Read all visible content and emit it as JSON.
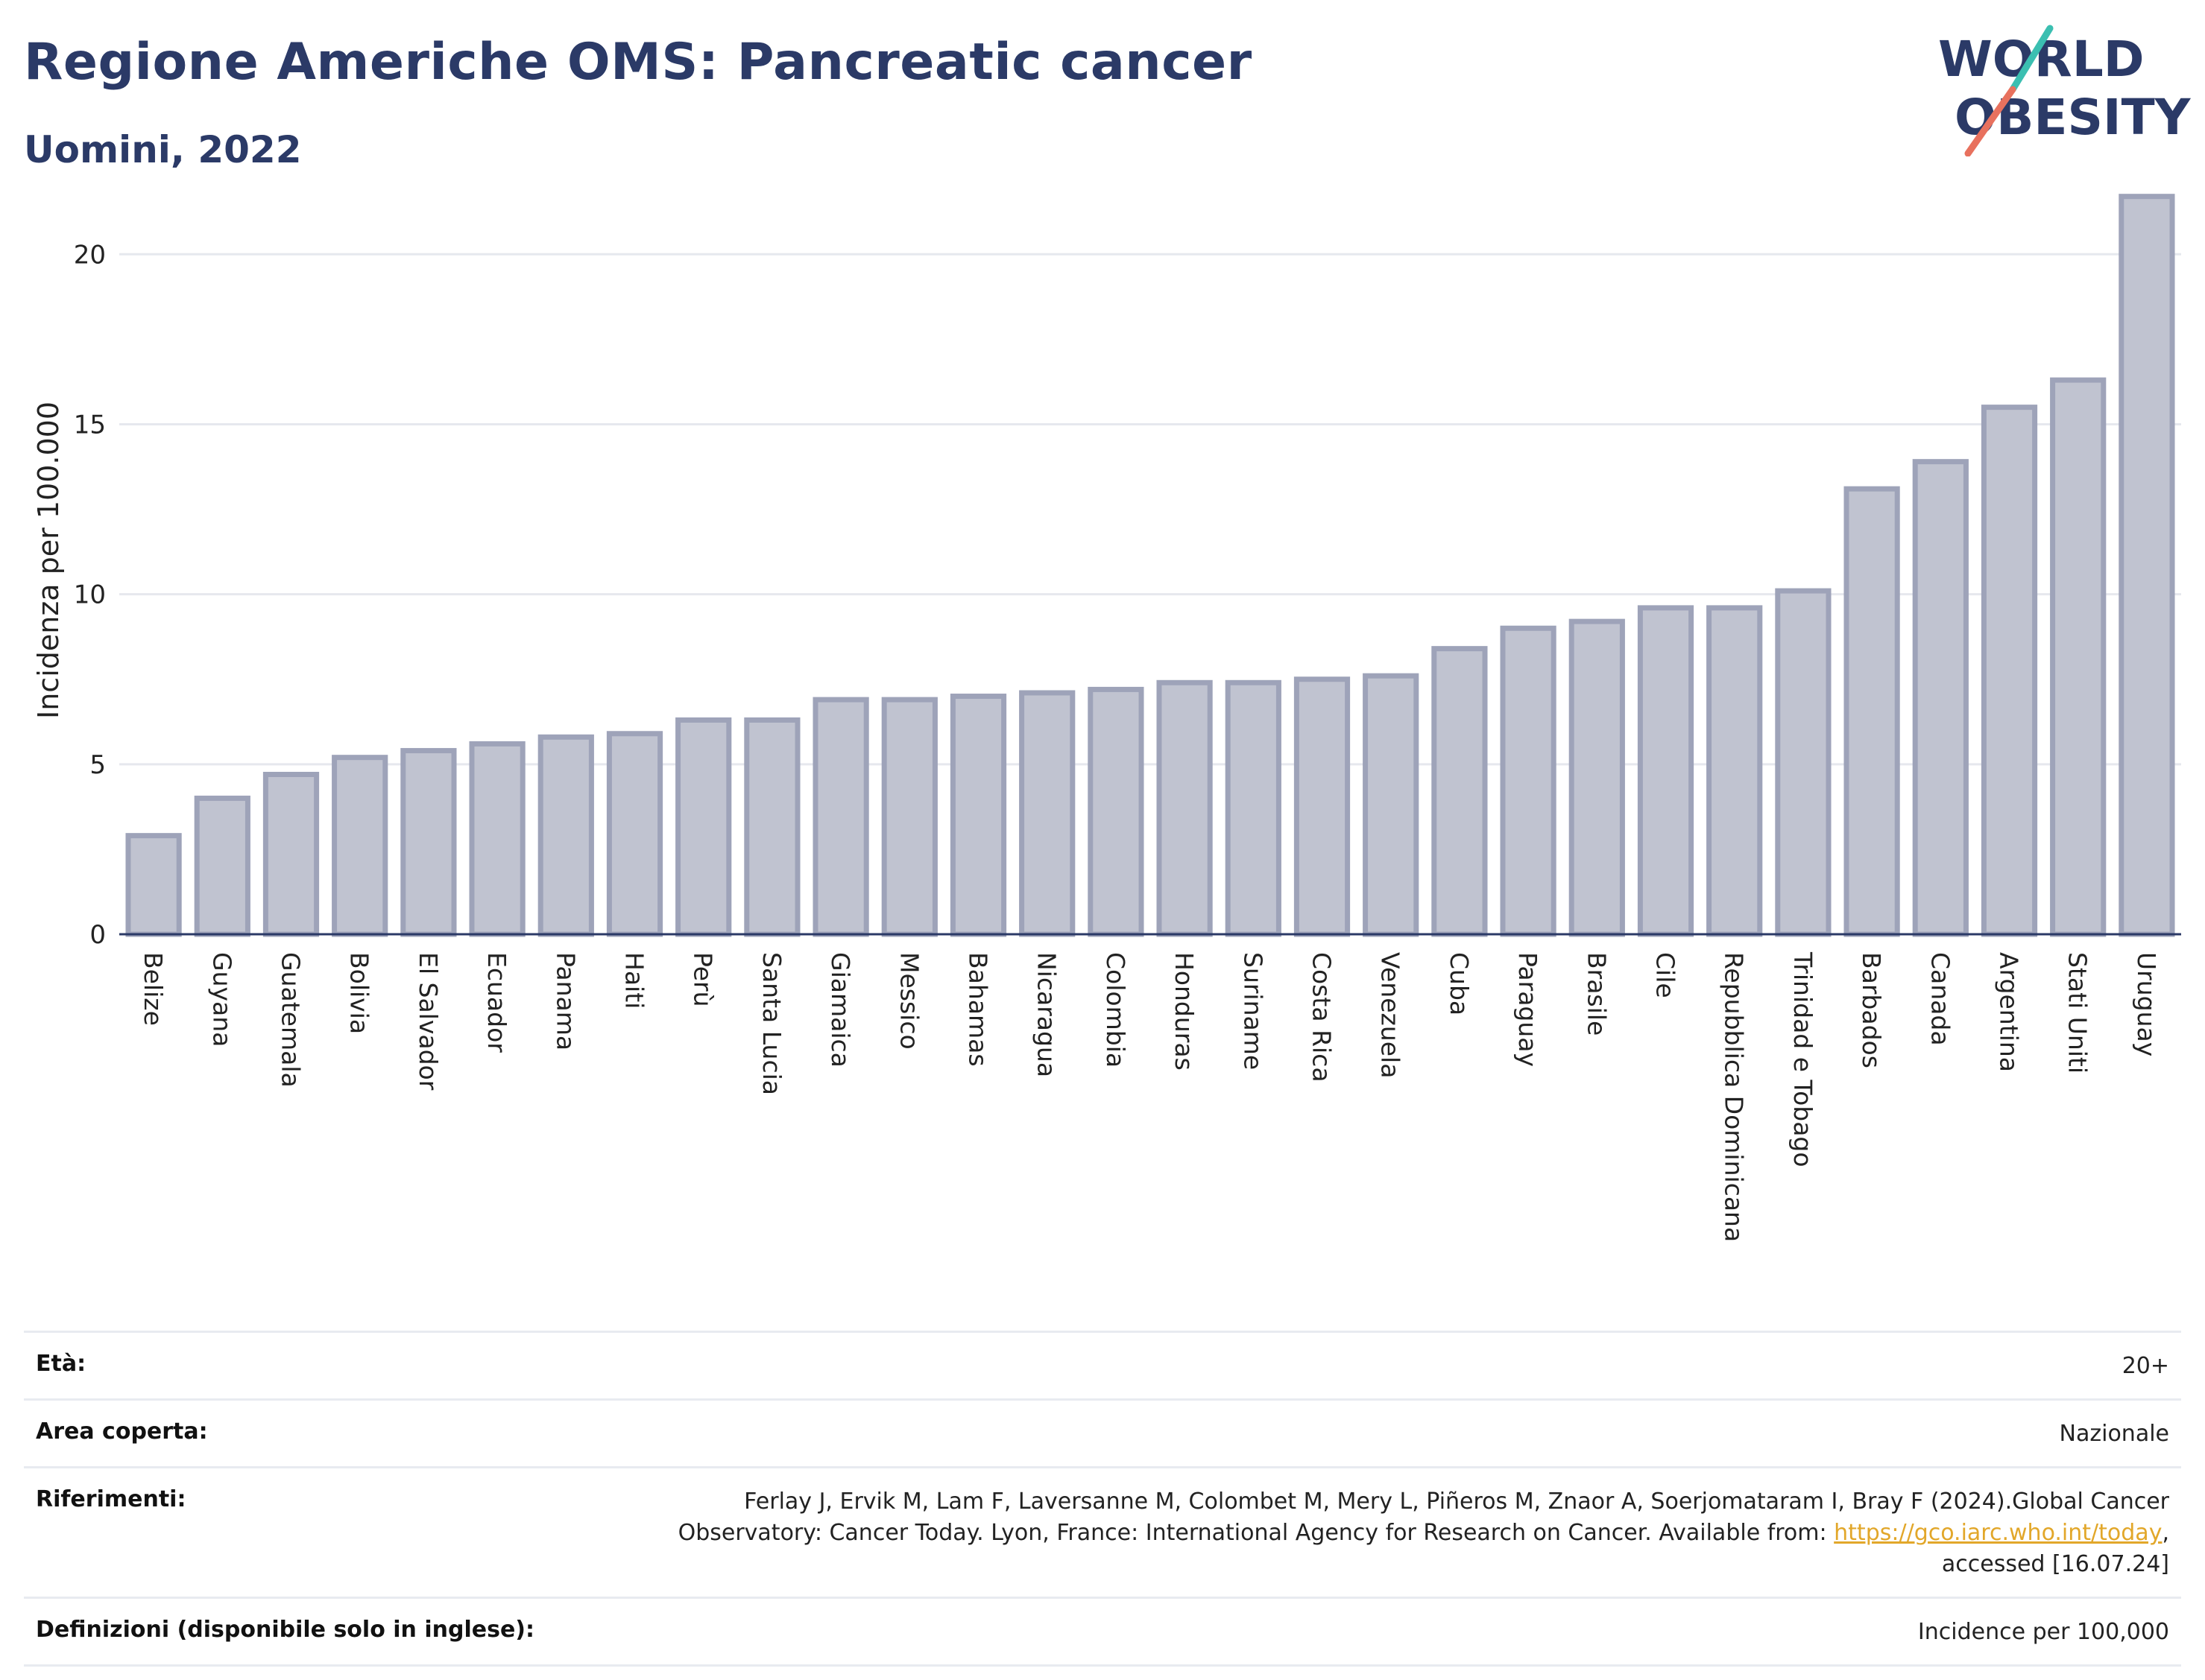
{
  "header": {
    "title": "Regione Americhe OMS: Pancreatic cancer",
    "subtitle": "Uomini, 2022"
  },
  "logo": {
    "line1": "WORLD",
    "line2": "OBESITY"
  },
  "colors": {
    "title": "#2b3a67",
    "bar_fill": "#c0c3d0",
    "bar_stroke": "#9ea3b9",
    "grid": "#e6e8ee",
    "link": "#e2a72a",
    "logo_teal": "#3bbfb1",
    "logo_coral": "#e8715e"
  },
  "chart_data": {
    "type": "bar",
    "ylabel": "Incidenza per 100.000",
    "xlabel": "",
    "ylim": [
      0,
      22
    ],
    "yticks": [
      0,
      5,
      10,
      15,
      20
    ],
    "grid": true,
    "categories": [
      "Belize",
      "Guyana",
      "Guatemala",
      "Bolivia",
      "El Salvador",
      "Ecuador",
      "Panama",
      "Haiti",
      "Perù",
      "Santa Lucia",
      "Giamaica",
      "Messico",
      "Bahamas",
      "Nicaragua",
      "Colombia",
      "Honduras",
      "Suriname",
      "Costa Rica",
      "Venezuela",
      "Cuba",
      "Paraguay",
      "Brasile",
      "Cile",
      "Repubblica Dominicana",
      "Trinidad e Tobago",
      "Barbados",
      "Canada",
      "Argentina",
      "Stati Uniti",
      "Uruguay"
    ],
    "values": [
      2.9,
      4.0,
      4.7,
      5.2,
      5.4,
      5.6,
      5.8,
      5.9,
      6.3,
      6.3,
      6.9,
      6.9,
      7.0,
      7.1,
      7.2,
      7.4,
      7.4,
      7.5,
      7.6,
      8.4,
      9.0,
      9.2,
      9.6,
      9.6,
      10.1,
      13.1,
      13.9,
      15.5,
      16.3,
      21.7
    ]
  },
  "info": {
    "age_label": "Età:",
    "age_value": "20+",
    "area_label": "Area coperta:",
    "area_value": "Nazionale",
    "ref_label": "Riferimenti:",
    "ref_line1": "Ferlay J, Ervik M, Lam F, Laversanne M, Colombet M, Mery L, Piñeros M, Znaor A, Soerjomataram I, Bray F (2024).Global Cancer",
    "ref_line2_pre": "Observatory: Cancer Today. Lyon, France: International Agency for Research on Cancer. Available from: ",
    "ref_link": "https://gco.iarc.who.int/today",
    "ref_line2_post": ",",
    "ref_line3": "accessed [16.07.24]",
    "def_label": "Definizioni (disponibile solo in inglese):",
    "def_value": "Incidence per 100,000"
  }
}
